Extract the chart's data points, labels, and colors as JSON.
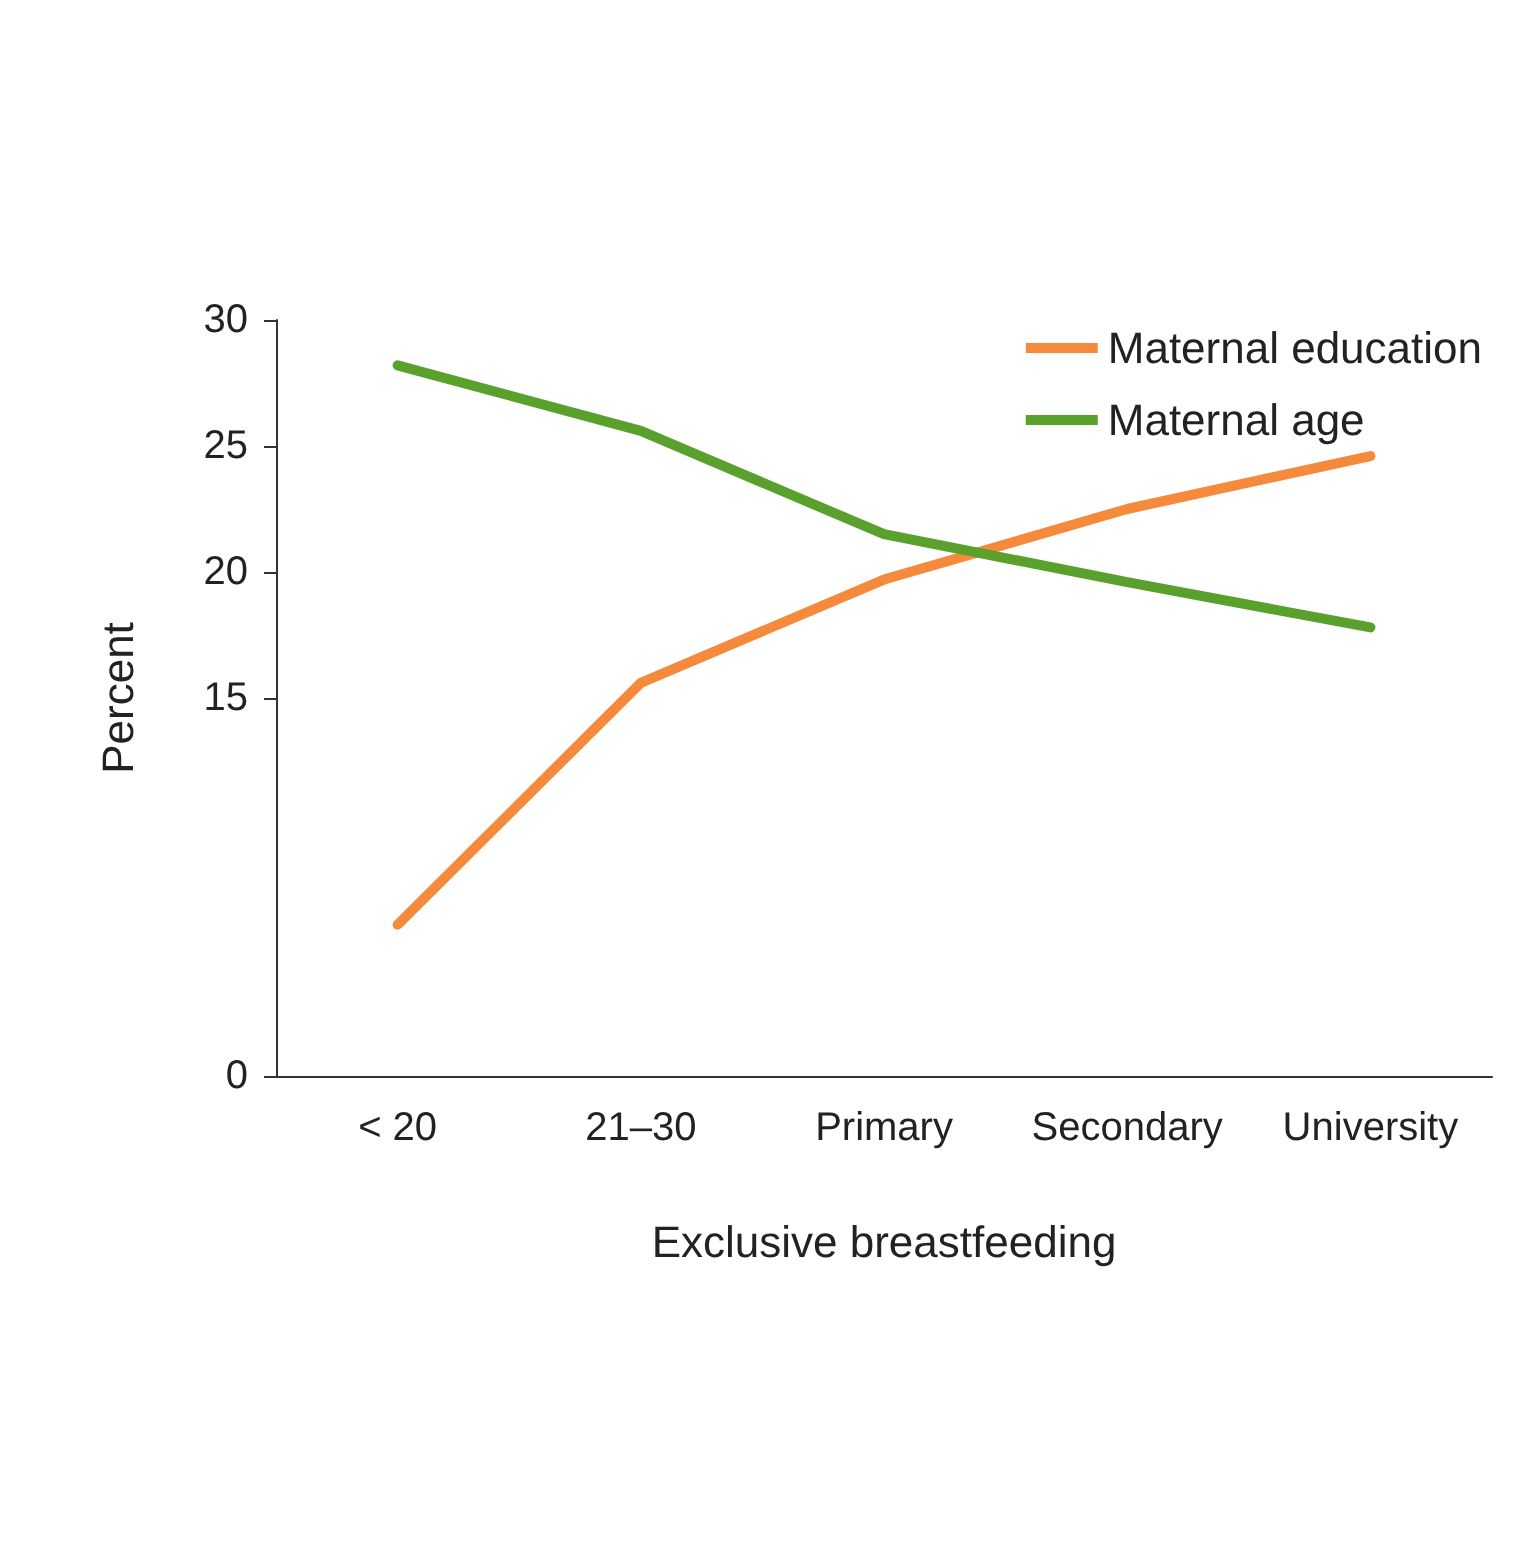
{
  "chart_data": {
    "type": "line",
    "xlabel": "Exclusive breastfeeding",
    "ylabel": "Percent",
    "categories": [
      "< 20",
      "21–30",
      "Primary",
      "Secondary",
      "University"
    ],
    "series": [
      {
        "name": "Maternal education",
        "color": "#f58a3c",
        "values": [
          6.0,
          15.6,
          19.7,
          22.5,
          24.6
        ]
      },
      {
        "name": "Maternal age",
        "color": "#5aa02c",
        "values": [
          28.2,
          25.6,
          21.5,
          19.6,
          17.8
        ]
      }
    ],
    "ylim": [
      0,
      30
    ],
    "yticks": [
      0,
      15,
      20,
      25,
      30
    ],
    "grid": false,
    "legend": "top right",
    "marker": "none",
    "line_style": "solid"
  }
}
